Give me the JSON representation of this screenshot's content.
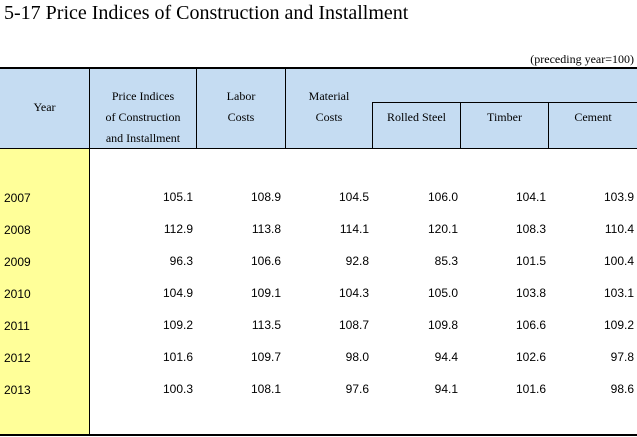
{
  "title": "5-17  Price Indices of Construction and Installment",
  "unit_note": "(preceding year=100)",
  "headers": {
    "year": "Year",
    "price_indices": [
      "Price Indices",
      "of Construction",
      "and Installment"
    ],
    "labor": [
      "Labor",
      "Costs"
    ],
    "material": [
      "Material",
      "Costs"
    ],
    "rolled_steel": "Rolled Steel",
    "timber": "Timber",
    "cement": "Cement"
  },
  "rows": [
    {
      "year": "2007",
      "values": [
        "105.1",
        "108.9",
        "104.5",
        "106.0",
        "104.1",
        "103.9"
      ]
    },
    {
      "year": "2008",
      "values": [
        "112.9",
        "113.8",
        "114.1",
        "120.1",
        "108.3",
        "110.4"
      ]
    },
    {
      "year": "2009",
      "values": [
        "96.3",
        "106.6",
        "92.8",
        "85.3",
        "101.5",
        "100.4"
      ]
    },
    {
      "year": "2010",
      "values": [
        "104.9",
        "109.1",
        "104.3",
        "105.0",
        "103.8",
        "103.1"
      ]
    },
    {
      "year": "2011",
      "values": [
        "109.2",
        "113.5",
        "108.7",
        "109.8",
        "106.6",
        "109.2"
      ]
    },
    {
      "year": "2012",
      "values": [
        "101.6",
        "109.7",
        "98.0",
        "94.4",
        "102.6",
        "97.8"
      ]
    },
    {
      "year": "2013",
      "values": [
        "100.3",
        "108.1",
        "97.6",
        "94.1",
        "101.6",
        "98.6"
      ]
    }
  ]
}
